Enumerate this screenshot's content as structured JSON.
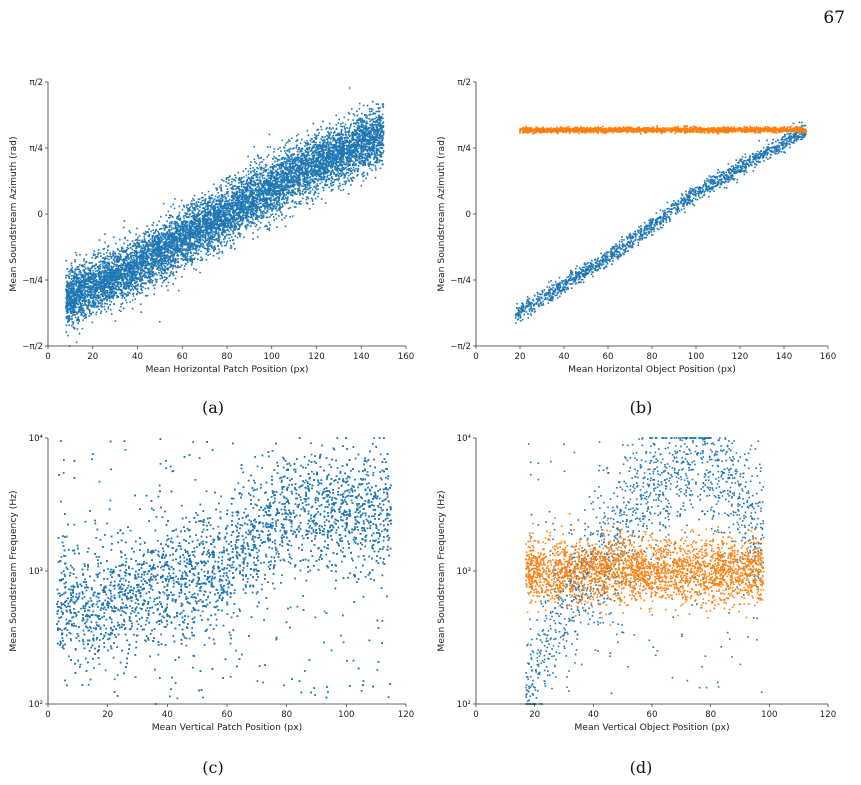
{
  "page": {
    "number": "67"
  },
  "colors": {
    "blue": "#1f77b4",
    "orange": "#ff7f0e"
  },
  "chart_data": [
    {
      "type": "scatter",
      "caption": "(a)",
      "xlabel": "Mean Horizontal Patch Position (px)",
      "ylabel": "Mean Soundstream Azimuth (rad)",
      "xlim": [
        0,
        160
      ],
      "ylim": [
        -1.5708,
        1.5708
      ],
      "xscale": "linear",
      "yscale": "linear",
      "xticks": [
        0,
        20,
        40,
        60,
        80,
        100,
        120,
        140,
        160
      ],
      "yticks": [
        {
          "value": -1.5708,
          "label": "−π/2"
        },
        {
          "value": -0.7854,
          "label": "−π/4"
        },
        {
          "value": 0,
          "label": "0"
        },
        {
          "value": 0.7854,
          "label": "π/4"
        },
        {
          "value": 1.5708,
          "label": "π/2"
        }
      ],
      "series": [
        {
          "color": "blue",
          "kind": "band",
          "points": 9000,
          "x": [
            8,
            150
          ],
          "y_at_x": [
            [
              8,
              -1.02
            ],
            [
              40,
              -0.62
            ],
            [
              80,
              0.0
            ],
            [
              110,
              0.48
            ],
            [
              150,
              0.95
            ]
          ],
          "spread": 0.17
        }
      ]
    },
    {
      "type": "scatter",
      "caption": "(b)",
      "xlabel": "Mean Horizontal Object Position (px)",
      "ylabel": "Mean Soundstream Azimuth (rad)",
      "xlim": [
        0,
        160
      ],
      "ylim": [
        -1.5708,
        1.5708
      ],
      "xscale": "linear",
      "yscale": "linear",
      "xticks": [
        0,
        20,
        40,
        60,
        80,
        100,
        120,
        140,
        160
      ],
      "yticks": [
        {
          "value": -1.5708,
          "label": "−π/2"
        },
        {
          "value": -0.7854,
          "label": "−π/4"
        },
        {
          "value": 0,
          "label": "0"
        },
        {
          "value": 0.7854,
          "label": "π/4"
        },
        {
          "value": 1.5708,
          "label": "π/2"
        }
      ],
      "series": [
        {
          "color": "blue",
          "kind": "band",
          "points": 1600,
          "x": [
            18,
            150
          ],
          "y_at_x": [
            [
              18,
              -1.2
            ],
            [
              60,
              -0.52
            ],
            [
              100,
              0.25
            ],
            [
              150,
              1.0
            ]
          ],
          "spread": 0.05
        },
        {
          "color": "orange",
          "kind": "band",
          "points": 2200,
          "x": [
            20,
            150
          ],
          "y_at_x": [
            [
              20,
              1.0
            ],
            [
              150,
              1.0
            ]
          ],
          "spread": 0.015
        }
      ]
    },
    {
      "type": "scatter",
      "caption": "(c)",
      "xlabel": "Mean Vertical Patch Position (px)",
      "ylabel": "Mean Soundstream Frequency (Hz)",
      "xlim": [
        0,
        120
      ],
      "ylim": [
        100,
        10000
      ],
      "xscale": "linear",
      "yscale": "log",
      "xticks": [
        0,
        20,
        40,
        60,
        80,
        100,
        120
      ],
      "yticks": [
        {
          "value": 100,
          "label": "10²"
        },
        {
          "value": 1000,
          "label": "10³"
        },
        {
          "value": 10000,
          "label": "10⁴"
        }
      ],
      "series": [
        {
          "color": "blue",
          "kind": "cloud",
          "points": 8000,
          "x": [
            3,
            115
          ],
          "y_range": [
            110,
            10000
          ],
          "dense_core": [
            [
              20,
              550
            ],
            [
              60,
              1000
            ],
            [
              80,
              2800
            ]
          ]
        }
      ]
    },
    {
      "type": "scatter",
      "caption": "(d)",
      "xlabel": "Mean Vertical Object Position (px)",
      "ylabel": "Mean Soundstream Frequency (Hz)",
      "xlim": [
        0,
        120
      ],
      "ylim": [
        100,
        10000
      ],
      "xscale": "linear",
      "yscale": "log",
      "xticks": [
        0,
        20,
        40,
        60,
        80,
        100,
        120
      ],
      "yticks": [
        {
          "value": 100,
          "label": "10²"
        },
        {
          "value": 1000,
          "label": "10³"
        },
        {
          "value": 10000,
          "label": "10⁴"
        }
      ],
      "series": [
        {
          "color": "blue",
          "kind": "cloud",
          "points": 1500,
          "x": [
            17,
            98
          ],
          "y_range": [
            120,
            9500
          ],
          "dense_core": [
            [
              20,
              130
            ],
            [
              45,
              1200
            ],
            [
              75,
              7000
            ],
            [
              95,
              2200
            ]
          ]
        },
        {
          "color": "orange",
          "kind": "band",
          "points": 2800,
          "x": [
            17,
            98
          ],
          "y_log_center": 1000,
          "spread_log": 0.12
        }
      ]
    }
  ]
}
